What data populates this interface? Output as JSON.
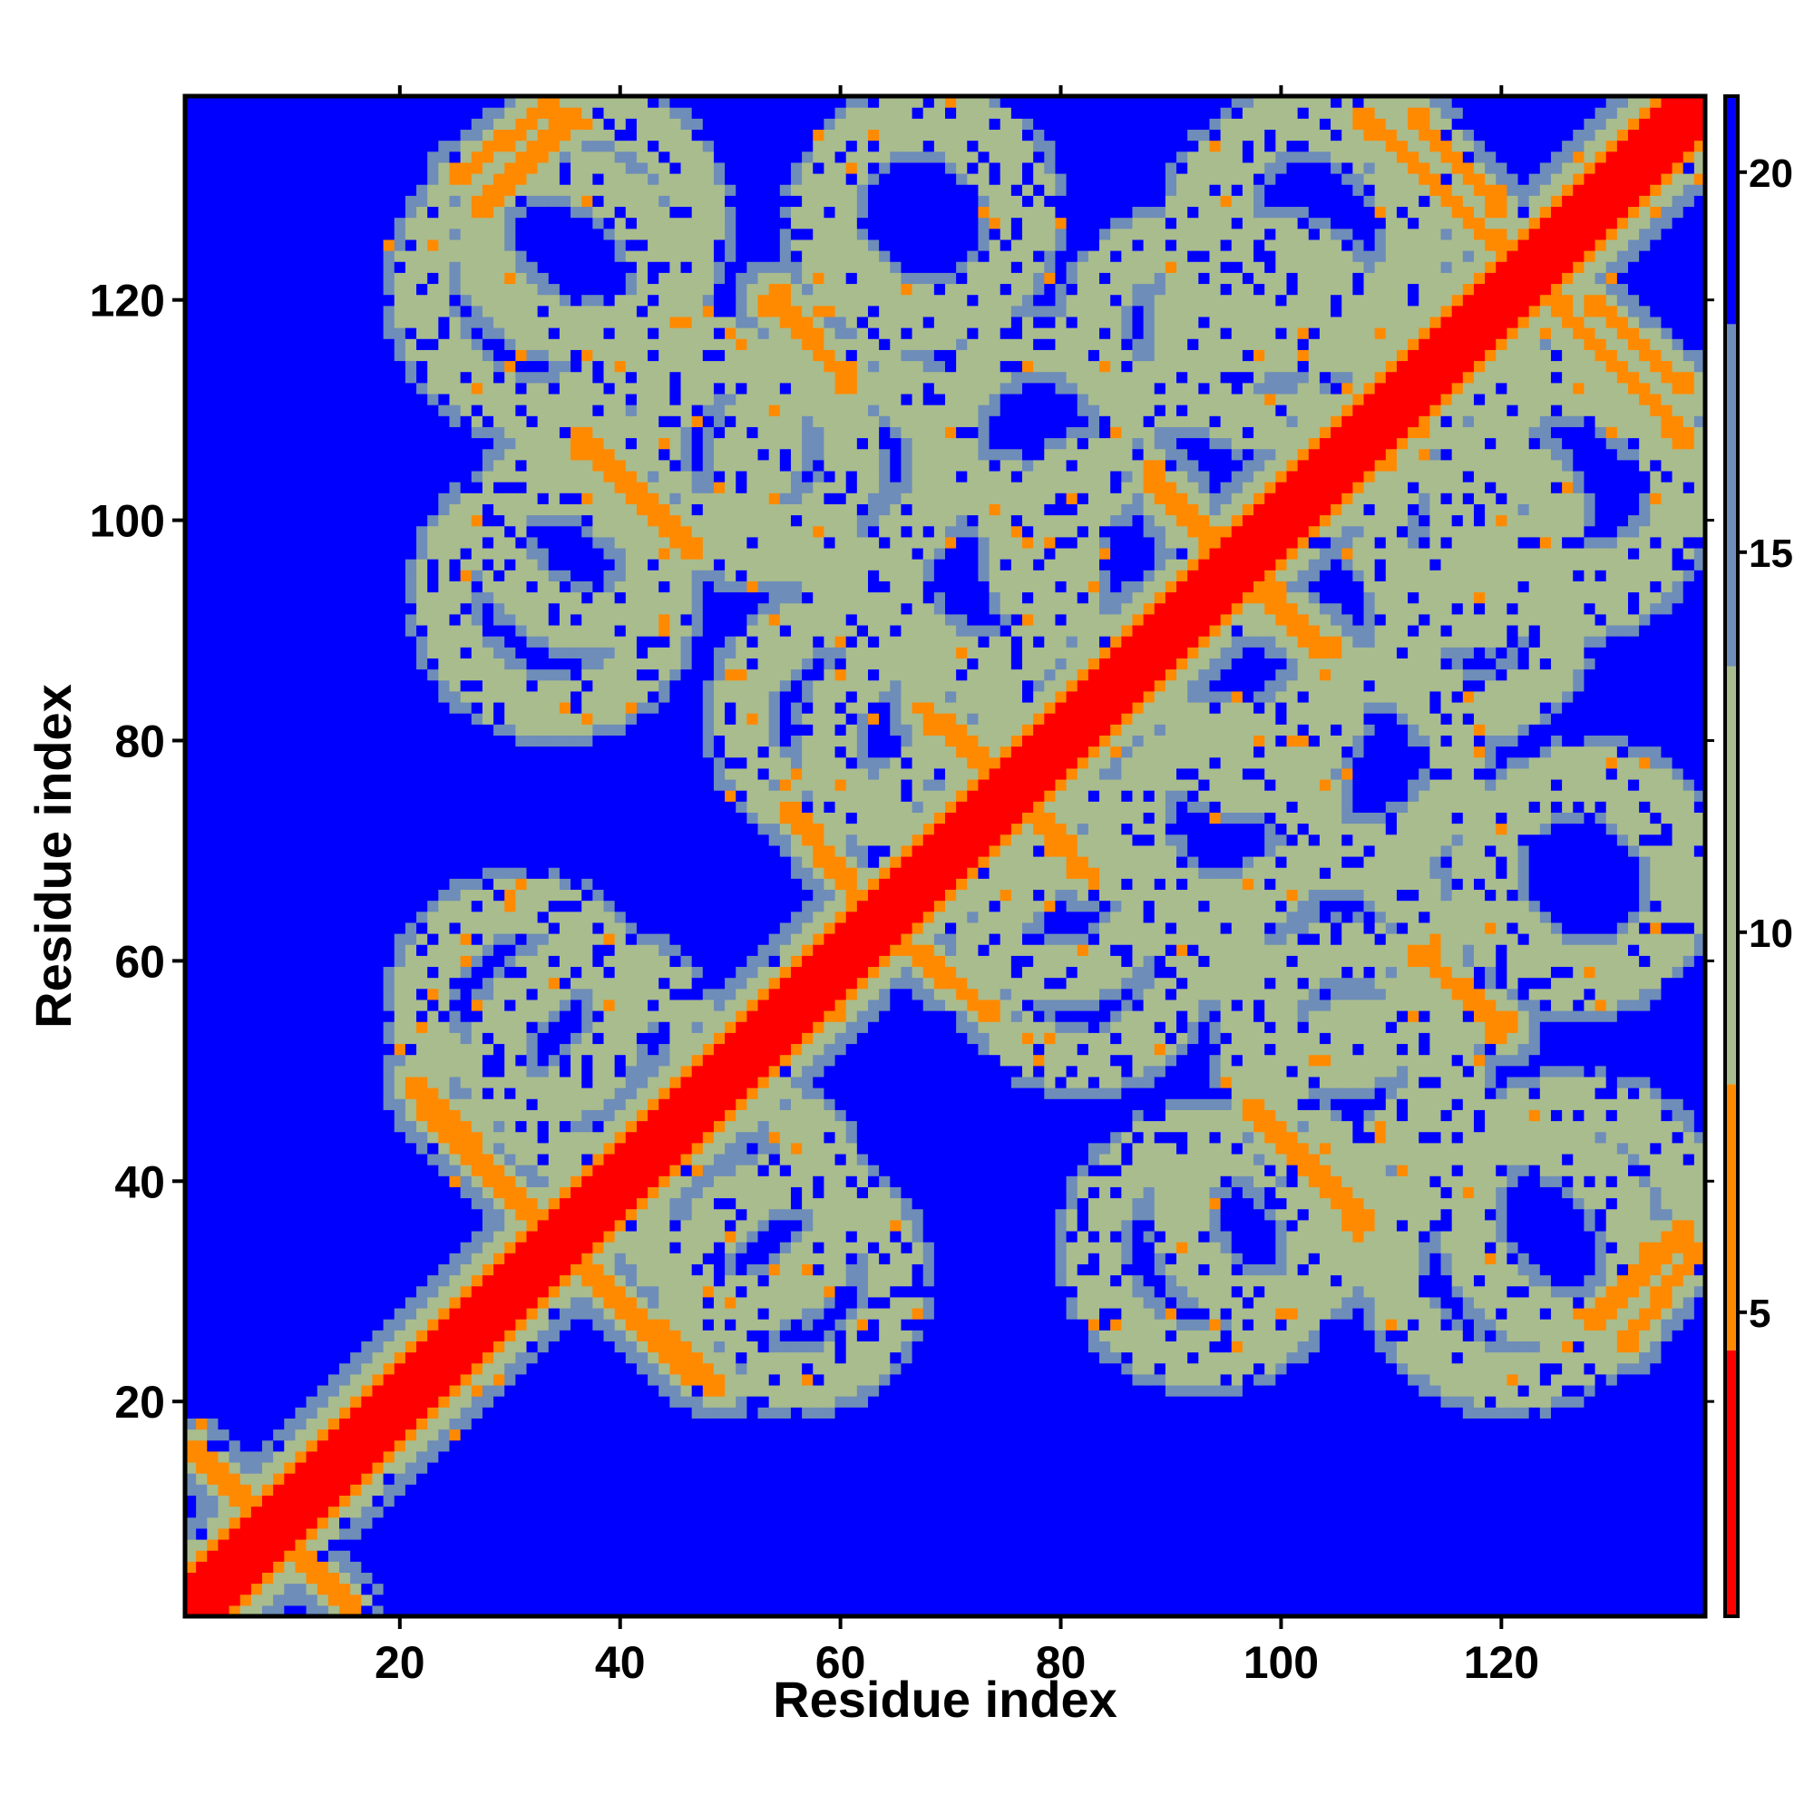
{
  "chart_data": {
    "type": "heatmap",
    "title": "",
    "xlabel": "Residue index",
    "ylabel": "Residue index",
    "n_residues": 138,
    "xlim": [
      1,
      138
    ],
    "ylim": [
      1,
      138
    ],
    "x_ticks": [
      20,
      40,
      60,
      80,
      100,
      120
    ],
    "y_ticks": [
      20,
      40,
      60,
      80,
      100,
      120
    ],
    "colorbar": {
      "range": [
        1,
        21
      ],
      "ticks": [
        5,
        10,
        15,
        20
      ],
      "colors": {
        "contact": "#ff0000",
        "near": "#ff8a00",
        "mid": "#a9bc8d",
        "far": "#6e8db8",
        "background": "#0000ff"
      }
    },
    "diagonal_width": 3,
    "bands": [
      {
        "kind": "parallel",
        "start": [
          1,
          16
        ],
        "end": [
          16,
          1
        ],
        "value": 6
      },
      {
        "kind": "anti",
        "start": [
          22,
          47
        ],
        "end": [
          33,
          36
        ],
        "value": 6
      },
      {
        "kind": "anti",
        "start": [
          43,
          27
        ],
        "end": [
          49,
          21
        ],
        "value": 6
      },
      {
        "kind": "anti",
        "start": [
          25,
          131
        ],
        "end": [
          34,
          138
        ],
        "value": 6
      },
      {
        "kind": "anti",
        "start": [
          36,
          108
        ],
        "end": [
          47,
          97
        ],
        "value": 6
      },
      {
        "kind": "anti",
        "start": [
          54,
          121
        ],
        "end": [
          61,
          112
        ],
        "value": 6
      },
      {
        "kind": "anti",
        "start": [
          55,
          74
        ],
        "end": [
          63,
          64
        ],
        "value": 6
      },
      {
        "kind": "anti",
        "start": [
          67,
          61
        ],
        "end": [
          74,
          55
        ],
        "value": 6
      },
      {
        "kind": "anti",
        "start": [
          68,
          82
        ],
        "end": [
          73,
          78
        ],
        "value": 6
      },
      {
        "kind": "anti",
        "start": [
          79,
          73
        ],
        "end": [
          83,
          67
        ],
        "value": 6
      },
      {
        "kind": "anti",
        "start": [
          88,
          104
        ],
        "end": [
          94,
          97
        ],
        "value": 6
      },
      {
        "kind": "anti",
        "start": [
          97,
          95
        ],
        "end": [
          105,
          88
        ],
        "value": 6
      },
      {
        "kind": "anti",
        "start": [
          98,
          46
        ],
        "end": [
          107,
          36
        ],
        "value": 6
      },
      {
        "kind": "anti",
        "start": [
          112,
          137
        ],
        "end": [
          120,
          128
        ],
        "value": 6
      },
      {
        "kind": "anti",
        "start": [
          113,
          61
        ],
        "end": [
          120,
          53
        ],
        "value": 6
      },
      {
        "kind": "anti",
        "start": [
          124,
          121
        ],
        "end": [
          137,
          107
        ],
        "value": 6
      },
      {
        "kind": "anti",
        "start": [
          128,
          27
        ],
        "end": [
          137,
          36
        ],
        "value": 6
      }
    ],
    "rings": [
      {
        "center": [
          37,
          127
        ],
        "radius": 10,
        "value": 11
      },
      {
        "center": [
          45,
          108
        ],
        "radius": 9,
        "value": 11
      },
      {
        "center": [
          37,
          99
        ],
        "radius": 8,
        "value": 11
      },
      {
        "center": [
          67,
          127
        ],
        "radius": 9,
        "value": 11
      },
      {
        "center": [
          60,
          105
        ],
        "radius": 9,
        "value": 11
      },
      {
        "center": [
          102,
          126
        ],
        "radius": 10,
        "value": 11
      },
      {
        "center": [
          128,
          105
        ],
        "radius": 10,
        "value": 11
      },
      {
        "center": [
          117,
          99
        ],
        "radius": 8,
        "value": 11
      },
      {
        "center": [
          38,
          51
        ],
        "radius": 9,
        "value": 11
      },
      {
        "center": [
          56,
          31
        ],
        "radius": 9,
        "value": 11
      },
      {
        "center": [
          82,
          60
        ],
        "radius": 9,
        "value": 11
      },
      {
        "center": [
          67,
          80
        ],
        "radius": 8,
        "value": 11
      },
      {
        "center": [
          95,
          73
        ],
        "radius": 8,
        "value": 11
      },
      {
        "center": [
          106,
          52
        ],
        "radius": 9,
        "value": 11
      },
      {
        "center": [
          128,
          68
        ],
        "radius": 9,
        "value": 11
      },
      {
        "center": [
          121,
          33
        ],
        "radius": 11,
        "value": 11
      },
      {
        "center": [
          93,
          34
        ],
        "radius": 10,
        "value": 11
      },
      {
        "center": [
          97,
          84
        ],
        "radius": 8,
        "value": 11
      },
      {
        "center": [
          78,
          108
        ],
        "radius": 8,
        "value": 11
      },
      {
        "center": [
          90,
          118
        ],
        "radius": 7,
        "value": 11
      }
    ]
  }
}
